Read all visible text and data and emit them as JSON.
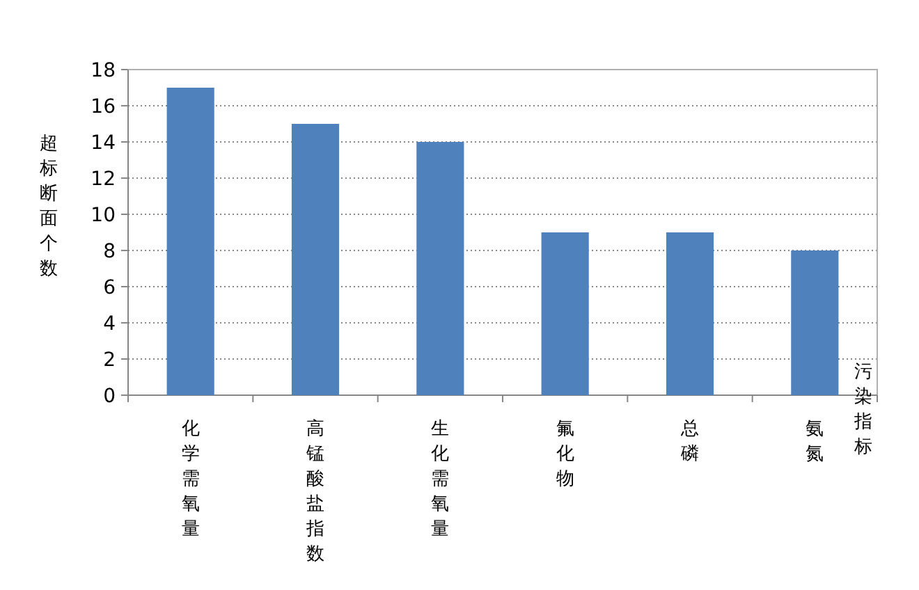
{
  "chart_data": {
    "type": "bar",
    "ylabel": "超标断面个数",
    "xlabel": "污染指标",
    "categories": [
      "化学需氧量",
      "高锰酸盐指数",
      "生化需氧量",
      "氟化物",
      "总磷",
      "氨氮"
    ],
    "values": [
      17,
      15,
      14,
      9,
      9,
      8
    ],
    "color": "#4f81bd",
    "ylim": [
      0,
      18
    ],
    "yticks": [
      0,
      2,
      4,
      6,
      8,
      10,
      12,
      14,
      16,
      18
    ],
    "grid": "y"
  }
}
